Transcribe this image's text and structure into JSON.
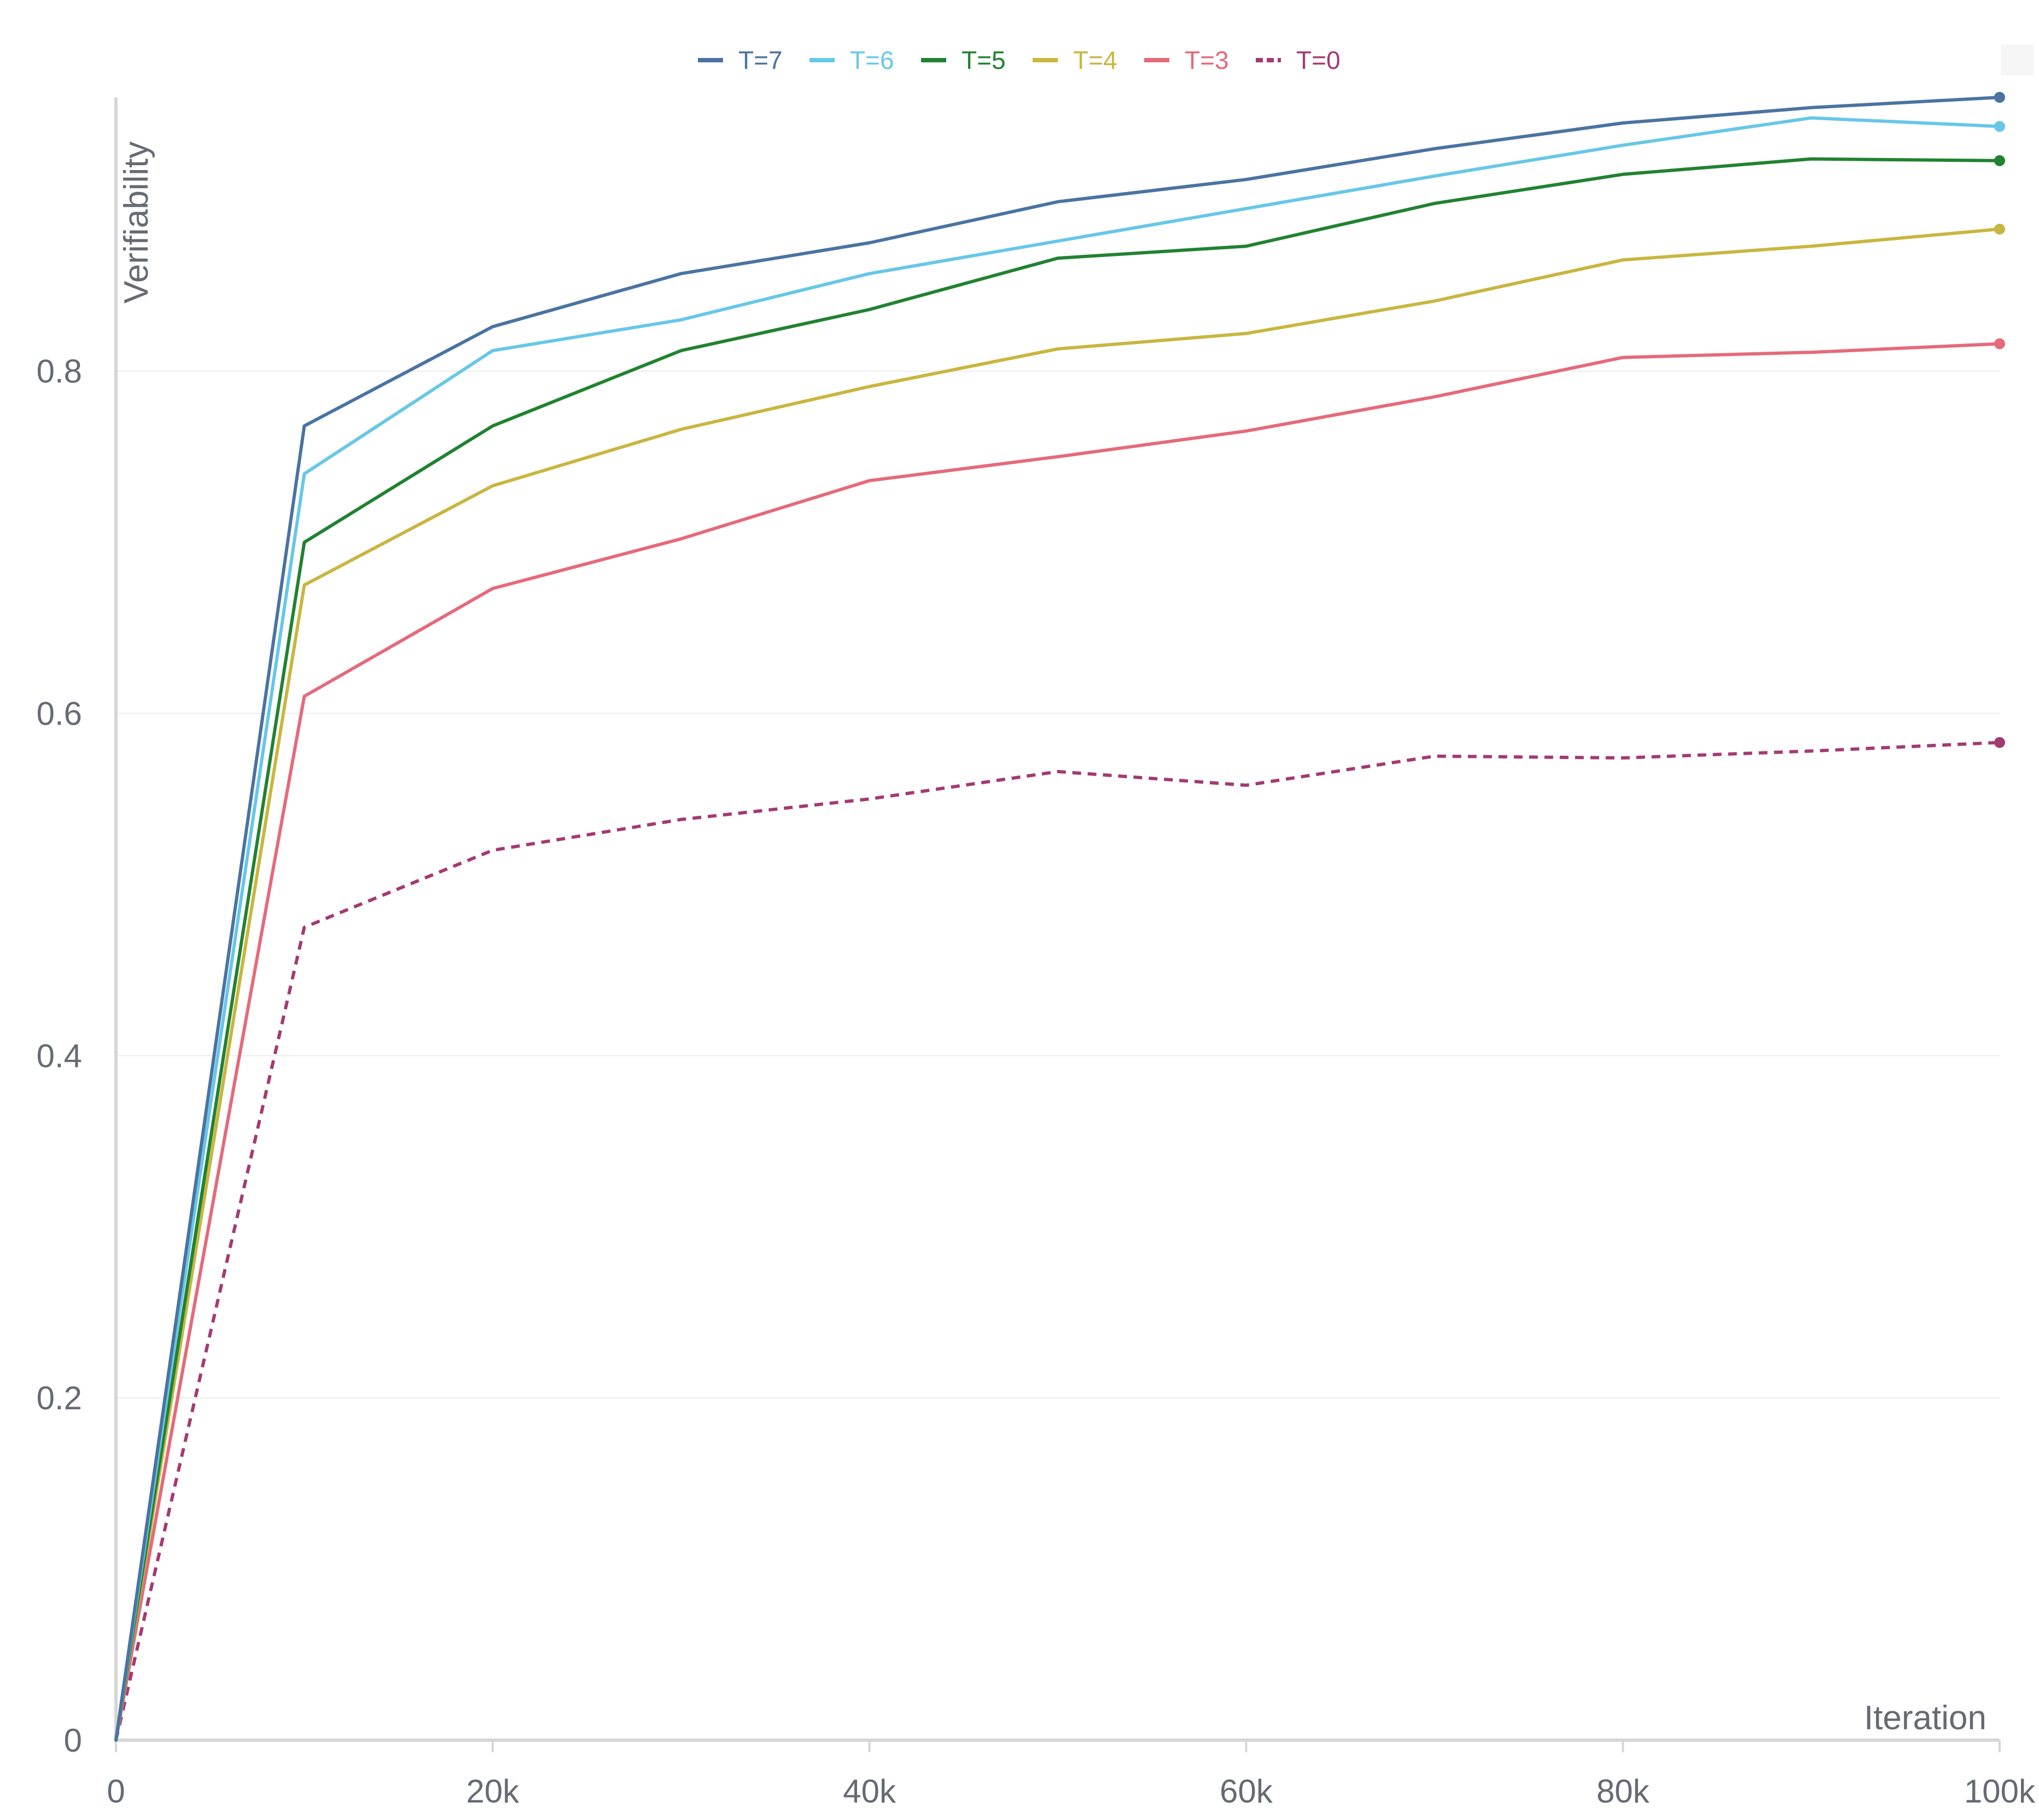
{
  "chart_data": {
    "type": "line",
    "xlabel": "Iteration",
    "ylabel": "Verifiability",
    "xlim": [
      0,
      100000
    ],
    "ylim": [
      0,
      0.96
    ],
    "x_ticks": [
      0,
      20000,
      40000,
      60000,
      80000,
      100000
    ],
    "x_tick_labels": [
      "0",
      "20k",
      "40k",
      "60k",
      "80k",
      "100k"
    ],
    "y_ticks": [
      0,
      0.2,
      0.4,
      0.6,
      0.8
    ],
    "y_tick_labels": [
      "0",
      "0.2",
      "0.4",
      "0.6",
      "0.8"
    ],
    "grid": "horizontal",
    "legend_position": "top-center",
    "x": [
      0,
      10000,
      20000,
      30000,
      40000,
      50000,
      60000,
      70000,
      80000,
      90000,
      100000
    ],
    "series": [
      {
        "name": "T=7",
        "color": "#4a73a1",
        "dashed": false,
        "values": [
          0.0,
          0.768,
          0.826,
          0.857,
          0.875,
          0.899,
          0.912,
          0.93,
          0.945,
          0.954,
          0.96
        ]
      },
      {
        "name": "T=6",
        "color": "#67c7e7",
        "dashed": false,
        "values": [
          0.0,
          0.74,
          0.812,
          0.83,
          0.857,
          0.876,
          0.895,
          0.914,
          0.932,
          0.948,
          0.943
        ]
      },
      {
        "name": "T=5",
        "color": "#218231",
        "dashed": false,
        "values": [
          0.0,
          0.7,
          0.768,
          0.812,
          0.836,
          0.866,
          0.873,
          0.898,
          0.915,
          0.924,
          0.923
        ]
      },
      {
        "name": "T=4",
        "color": "#c8b640",
        "dashed": false,
        "values": [
          0.0,
          0.675,
          0.733,
          0.766,
          0.791,
          0.813,
          0.822,
          0.841,
          0.865,
          0.873,
          0.883
        ]
      },
      {
        "name": "T=3",
        "color": "#e56a7a",
        "dashed": false,
        "values": [
          0.0,
          0.61,
          0.673,
          0.702,
          0.736,
          0.75,
          0.765,
          0.785,
          0.808,
          0.811,
          0.816
        ]
      },
      {
        "name": "T=0",
        "color": "#a33a72",
        "dashed": true,
        "values": [
          0.0,
          0.475,
          0.52,
          0.538,
          0.55,
          0.566,
          0.558,
          0.575,
          0.574,
          0.578,
          0.583
        ]
      }
    ]
  }
}
